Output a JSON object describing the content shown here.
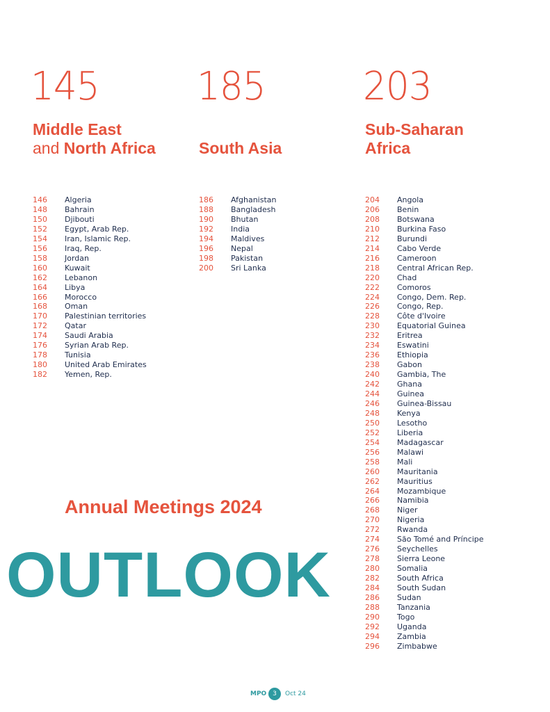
{
  "columns": [
    {
      "start_page": 145,
      "title_lines": [
        [
          {
            "text": "Middle East",
            "bold": true
          }
        ],
        [
          {
            "text": "and",
            "bold": false
          },
          {
            "text": "North Africa",
            "bold": true
          }
        ]
      ],
      "entries": [
        [
          146,
          "Algeria"
        ],
        [
          148,
          "Bahrain"
        ],
        [
          150,
          "Djibouti"
        ],
        [
          152,
          "Egypt, Arab Rep."
        ],
        [
          154,
          "Iran, Islamic Rep."
        ],
        [
          156,
          "Iraq, Rep."
        ],
        [
          158,
          "Jordan"
        ],
        [
          160,
          "Kuwait"
        ],
        [
          162,
          "Lebanon"
        ],
        [
          164,
          "Libya"
        ],
        [
          166,
          "Morocco"
        ],
        [
          168,
          "Oman"
        ],
        [
          170,
          "Palestinian territories"
        ],
        [
          172,
          "Qatar"
        ],
        [
          174,
          "Saudi Arabia"
        ],
        [
          176,
          "Syrian Arab Rep."
        ],
        [
          178,
          "Tunisia"
        ],
        [
          180,
          "United Arab Emirates"
        ],
        [
          182,
          "Yemen, Rep."
        ]
      ]
    },
    {
      "start_page": 185,
      "title_lines": [
        [
          {
            "text": "South Asia",
            "bold": true
          }
        ]
      ],
      "entries": [
        [
          186,
          "Afghanistan"
        ],
        [
          188,
          "Bangladesh"
        ],
        [
          190,
          "Bhutan"
        ],
        [
          192,
          "India"
        ],
        [
          194,
          "Maldives"
        ],
        [
          196,
          "Nepal"
        ],
        [
          198,
          "Pakistan"
        ],
        [
          200,
          "Sri Lanka"
        ]
      ]
    },
    {
      "start_page": 203,
      "title_lines": [
        [
          {
            "text": "Sub-Saharan",
            "bold": true
          }
        ],
        [
          {
            "text": "Africa",
            "bold": true
          }
        ]
      ],
      "entries": [
        [
          204,
          "Angola"
        ],
        [
          206,
          "Benin"
        ],
        [
          208,
          "Botswana"
        ],
        [
          210,
          "Burkina Faso"
        ],
        [
          212,
          "Burundi"
        ],
        [
          214,
          "Cabo Verde"
        ],
        [
          216,
          "Cameroon"
        ],
        [
          218,
          "Central African Rep."
        ],
        [
          220,
          "Chad"
        ],
        [
          222,
          "Comoros"
        ],
        [
          224,
          "Congo, Dem. Rep."
        ],
        [
          226,
          "Congo, Rep."
        ],
        [
          228,
          "Côte d'Ivoire"
        ],
        [
          230,
          "Equatorial Guinea"
        ],
        [
          232,
          "Eritrea"
        ],
        [
          234,
          "Eswatini"
        ],
        [
          236,
          "Ethiopia"
        ],
        [
          238,
          "Gabon"
        ],
        [
          240,
          "Gambia, The"
        ],
        [
          242,
          "Ghana"
        ],
        [
          244,
          "Guinea"
        ],
        [
          246,
          "Guinea-Bissau"
        ],
        [
          248,
          "Kenya"
        ],
        [
          250,
          "Lesotho"
        ],
        [
          252,
          "Liberia"
        ],
        [
          254,
          "Madagascar"
        ],
        [
          256,
          "Malawi"
        ],
        [
          258,
          "Mali"
        ],
        [
          260,
          "Mauritania"
        ],
        [
          262,
          "Mauritius"
        ],
        [
          264,
          "Mozambique"
        ],
        [
          266,
          "Namibia"
        ],
        [
          268,
          "Niger"
        ],
        [
          270,
          "Nigeria"
        ],
        [
          272,
          "Rwanda"
        ],
        [
          274,
          "São Tomé and Príncipe"
        ],
        [
          276,
          "Seychelles"
        ],
        [
          278,
          "Sierra Leone"
        ],
        [
          280,
          "Somalia"
        ],
        [
          282,
          "South Africa"
        ],
        [
          284,
          "South Sudan"
        ],
        [
          286,
          "Sudan"
        ],
        [
          288,
          "Tanzania"
        ],
        [
          290,
          "Togo"
        ],
        [
          292,
          "Uganda"
        ],
        [
          294,
          "Zambia"
        ],
        [
          296,
          "Zimbabwe"
        ]
      ]
    }
  ],
  "annual": "Annual Meetings 2024",
  "outlook": "OUTLOOK",
  "footer": {
    "label": "MPO",
    "page": 3,
    "date": "Oct 24"
  }
}
